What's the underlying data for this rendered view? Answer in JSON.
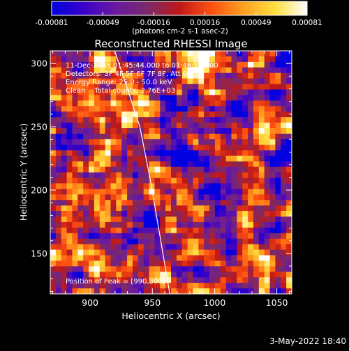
{
  "chart_data": {
    "type": "heatmap",
    "title": "Reconstructed RHESSI Image",
    "xlabel": "Heliocentric X (arcsec)",
    "ylabel": "Heliocentric Y (arcsec)",
    "xlim": [
      868,
      1062
    ],
    "ylim": [
      118,
      310
    ],
    "x_ticks": [
      900,
      950,
      1000,
      1050
    ],
    "y_ticks": [
      150,
      200,
      250,
      300
    ],
    "colorbar": {
      "ticks": [
        "-0.00081",
        "-0.00049",
        "-0.00016",
        "0.00016",
        "0.00049",
        "0.00081"
      ],
      "unit_label": "(photons cm-2 s-1 asec-2)",
      "range": [
        -0.00081,
        0.00081
      ],
      "colors": [
        "#0000e0",
        "#3a00c8",
        "#6a1aa0",
        "#7a2a6a",
        "#c01818",
        "#ff5010",
        "#ffa020",
        "#ffe040",
        "#ffffff"
      ]
    },
    "annotations": [
      "11-Dec-2005 01:45:44.000 to 01:46:12.000",
      "Detectors: 3F 4F 5F 6F 7F 8F, Att 0",
      "Energy Range: 25.0 - 50.0 keV",
      "Clean    Total counts: 2.76E+03"
    ],
    "peak_label": "Position of Peak = [990,300]",
    "peak": [
      990,
      300
    ],
    "limb_curve": [
      [
        919,
        312
      ],
      [
        930,
        280
      ],
      [
        940,
        250
      ],
      [
        948,
        210
      ],
      [
        955,
        170
      ],
      [
        962,
        130
      ],
      [
        964,
        118
      ]
    ]
  },
  "footer": {
    "date": "3-May-2022 18:40"
  }
}
